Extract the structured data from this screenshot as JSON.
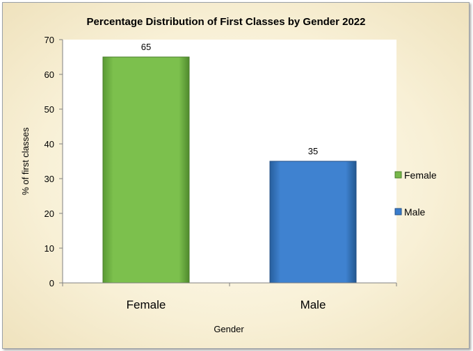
{
  "chart_data": {
    "type": "bar",
    "title": "Percentage Distribution of First Classes by Gender 2022",
    "xlabel": "Gender",
    "ylabel": "% of first classes",
    "categories": [
      "Female",
      "Male"
    ],
    "values": [
      65,
      35
    ],
    "colors": [
      "#77b84a",
      "#3a7ccc"
    ],
    "ylim": [
      0,
      70
    ],
    "yticks": [
      0,
      10,
      20,
      30,
      40,
      50,
      60,
      70
    ],
    "grid": false,
    "legend": {
      "position": "right",
      "entries": [
        "Female",
        "Male"
      ]
    }
  }
}
